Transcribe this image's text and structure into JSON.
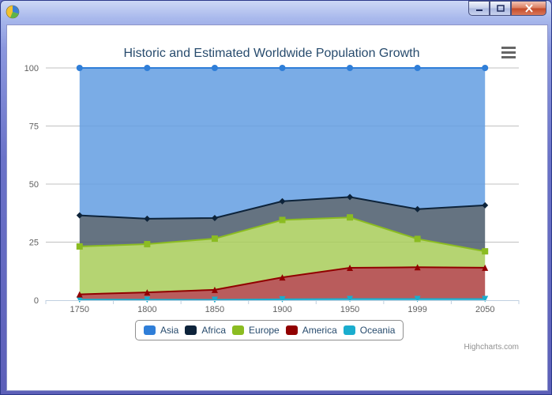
{
  "window": {
    "controls": {
      "minimize": "minimize-icon",
      "maximize": "maximize-icon",
      "close": "close-icon"
    },
    "app_icon": "pie-chart-icon"
  },
  "chart_menu_icon": "hamburger-menu-icon",
  "credits": "Highcharts.com",
  "colors": {
    "Asia": "#2f7ed8",
    "Africa": "#0d233a",
    "Europe": "#8bbc21",
    "America": "#910000",
    "Oceania": "#1aadce"
  },
  "chart_data": {
    "type": "area",
    "stacking": "percent",
    "title": "Historic and Estimated Worldwide Population Growth",
    "categories": [
      "1750",
      "1800",
      "1850",
      "1900",
      "1950",
      "1999",
      "2050"
    ],
    "ylim": [
      0,
      100
    ],
    "yticks": [
      0,
      25,
      50,
      75,
      100
    ],
    "grid": true,
    "legend_position": "bottom-center",
    "series": [
      {
        "name": "Asia",
        "values": [
          502,
          635,
          809,
          947,
          1402,
          3634,
          5268
        ]
      },
      {
        "name": "Africa",
        "values": [
          106,
          107,
          111,
          133,
          221,
          767,
          1766
        ]
      },
      {
        "name": "Europe",
        "values": [
          163,
          203,
          276,
          408,
          547,
          729,
          628
        ]
      },
      {
        "name": "America",
        "values": [
          18,
          31,
          54,
          156,
          339,
          818,
          1201
        ]
      },
      {
        "name": "Oceania",
        "values": [
          2,
          2,
          2,
          6,
          13,
          30,
          46
        ]
      }
    ]
  }
}
